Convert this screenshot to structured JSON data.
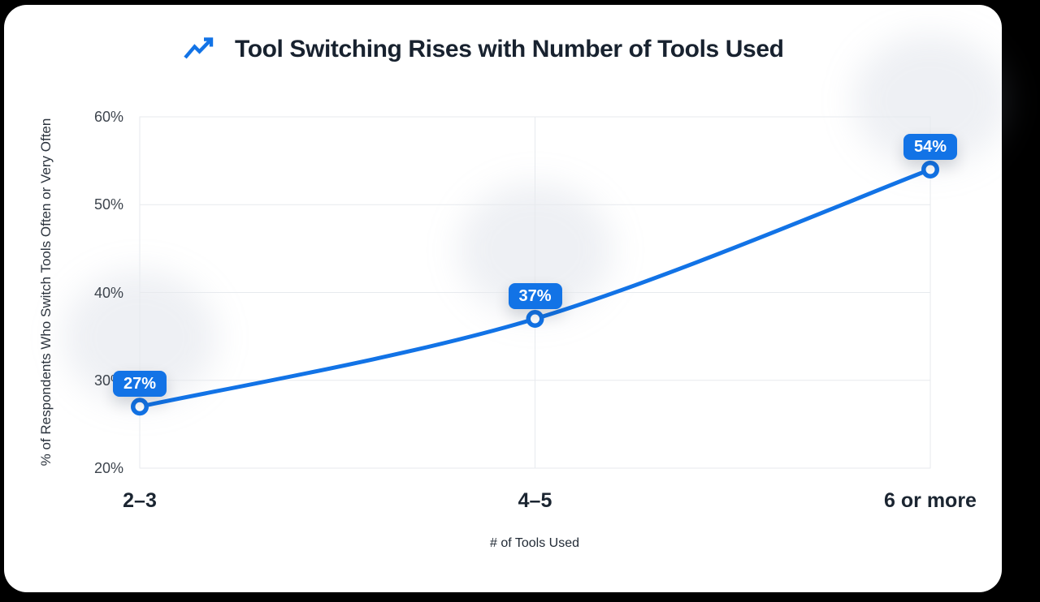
{
  "colors": {
    "page_bg": "#000000",
    "card_bg": "#ffffff",
    "accent": "#1273e6",
    "title_text": "#18222f",
    "tick_text": "#3d444d",
    "x_tick_text": "#1b2531",
    "axis_title_text": "#222b36",
    "grid": "#e7eaee",
    "badge_text": "#ffffff",
    "marker_fill": "#ffffff"
  },
  "header": {
    "icon": "trending-up-icon"
  },
  "chart_data": {
    "type": "line",
    "title": "Tool Switching Rises with Number of Tools Used",
    "xlabel": "# of Tools Used",
    "ylabel": "% of Respondents Who Switch Tools Often or Very Often",
    "categories": [
      "2–3",
      "4–5",
      "6 or more"
    ],
    "values": [
      27,
      37,
      54
    ],
    "point_labels": [
      "27%",
      "37%",
      "54%"
    ],
    "y_ticks": [
      20,
      30,
      40,
      50,
      60
    ],
    "y_tick_labels": [
      "20%",
      "30%",
      "40%",
      "50%",
      "60%"
    ],
    "ylim": [
      20,
      60
    ],
    "grid": true,
    "legend": "none",
    "line_color": "#1273e6",
    "marker": "circle-white-fill-blue-ring"
  }
}
